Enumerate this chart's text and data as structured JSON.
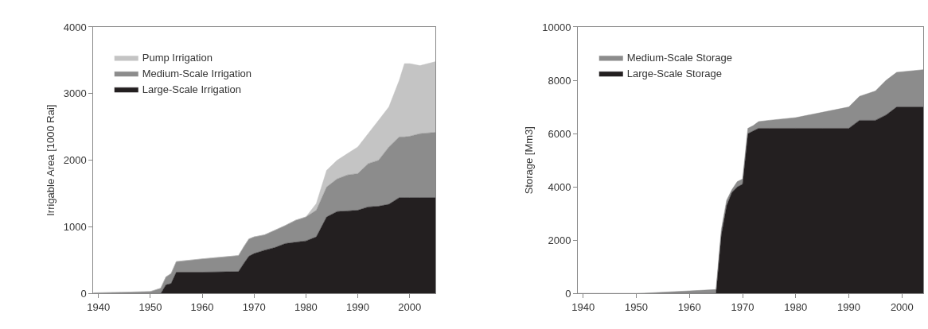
{
  "chart_data": [
    {
      "type": "area",
      "stacked": true,
      "ylabel": "Irrigable Area [1000 Rai]",
      "x": [
        1939,
        1945,
        1950,
        1952,
        1953,
        1954,
        1955,
        1960,
        1967,
        1968,
        1969,
        1970,
        1972,
        1974,
        1976,
        1978,
        1980,
        1982,
        1984,
        1986,
        1988,
        1990,
        1992,
        1994,
        1996,
        1998,
        1999,
        2000,
        2002,
        2005
      ],
      "series": [
        {
          "name": "Large-Scale Irrigation",
          "color": "#231f20",
          "values": [
            0,
            0,
            0,
            0,
            130,
            150,
            320,
            320,
            330,
            450,
            560,
            600,
            650,
            690,
            750,
            770,
            790,
            850,
            1150,
            1230,
            1240,
            1250,
            1300,
            1310,
            1340,
            1440,
            1440,
            1440,
            1440,
            1440
          ]
        },
        {
          "name": "Medium-Scale Irrigation",
          "color": "#8c8c8c",
          "values": [
            10,
            20,
            30,
            80,
            120,
            150,
            160,
            200,
            240,
            250,
            260,
            250,
            230,
            260,
            270,
            330,
            360,
            400,
            450,
            490,
            540,
            550,
            650,
            690,
            860,
            910,
            910,
            920,
            960,
            980
          ]
        },
        {
          "name": "Pump Irrigation",
          "color": "#c4c4c4",
          "values": [
            0,
            0,
            0,
            0,
            0,
            0,
            0,
            0,
            0,
            0,
            0,
            0,
            0,
            0,
            0,
            0,
            0,
            100,
            250,
            280,
            320,
            400,
            450,
            600,
            600,
            850,
            1100,
            1090,
            1020,
            1060
          ]
        }
      ],
      "xlim": [
        1939,
        2005
      ],
      "xticks": [
        1940,
        1950,
        1960,
        1970,
        1980,
        1990,
        2000
      ],
      "ylim": [
        0,
        4000
      ],
      "yticks": [
        0,
        1000,
        2000,
        3000,
        4000
      ],
      "legend": "top left"
    },
    {
      "type": "area",
      "stacked": true,
      "ylabel": "Storage [Mm3]",
      "x": [
        1939,
        1950,
        1955,
        1960,
        1965,
        1966,
        1967,
        1968,
        1969,
        1970,
        1971,
        1972,
        1973,
        1975,
        1980,
        1985,
        1990,
        1992,
        1995,
        1997,
        1999,
        2004
      ],
      "series": [
        {
          "name": "Large-Scale Storage",
          "color": "#231f20",
          "values": [
            0,
            0,
            0,
            0,
            0,
            2200,
            3300,
            3800,
            4000,
            4100,
            6000,
            6100,
            6200,
            6200,
            6200,
            6200,
            6200,
            6500,
            6500,
            6700,
            7000,
            7000
          ]
        },
        {
          "name": "Medium-Scale Storage",
          "color": "#8c8c8c",
          "values": [
            0,
            0,
            50,
            100,
            150,
            200,
            200,
            100,
            200,
            200,
            200,
            200,
            250,
            300,
            400,
            600,
            800,
            900,
            1100,
            1300,
            1300,
            1400
          ]
        }
      ],
      "xlim": [
        1939,
        2004
      ],
      "xticks": [
        1940,
        1950,
        1960,
        1970,
        1980,
        1990,
        2000
      ],
      "ylim": [
        0,
        10000
      ],
      "yticks": [
        0,
        2000,
        4000,
        6000,
        8000,
        10000
      ],
      "legend": "top left"
    }
  ]
}
